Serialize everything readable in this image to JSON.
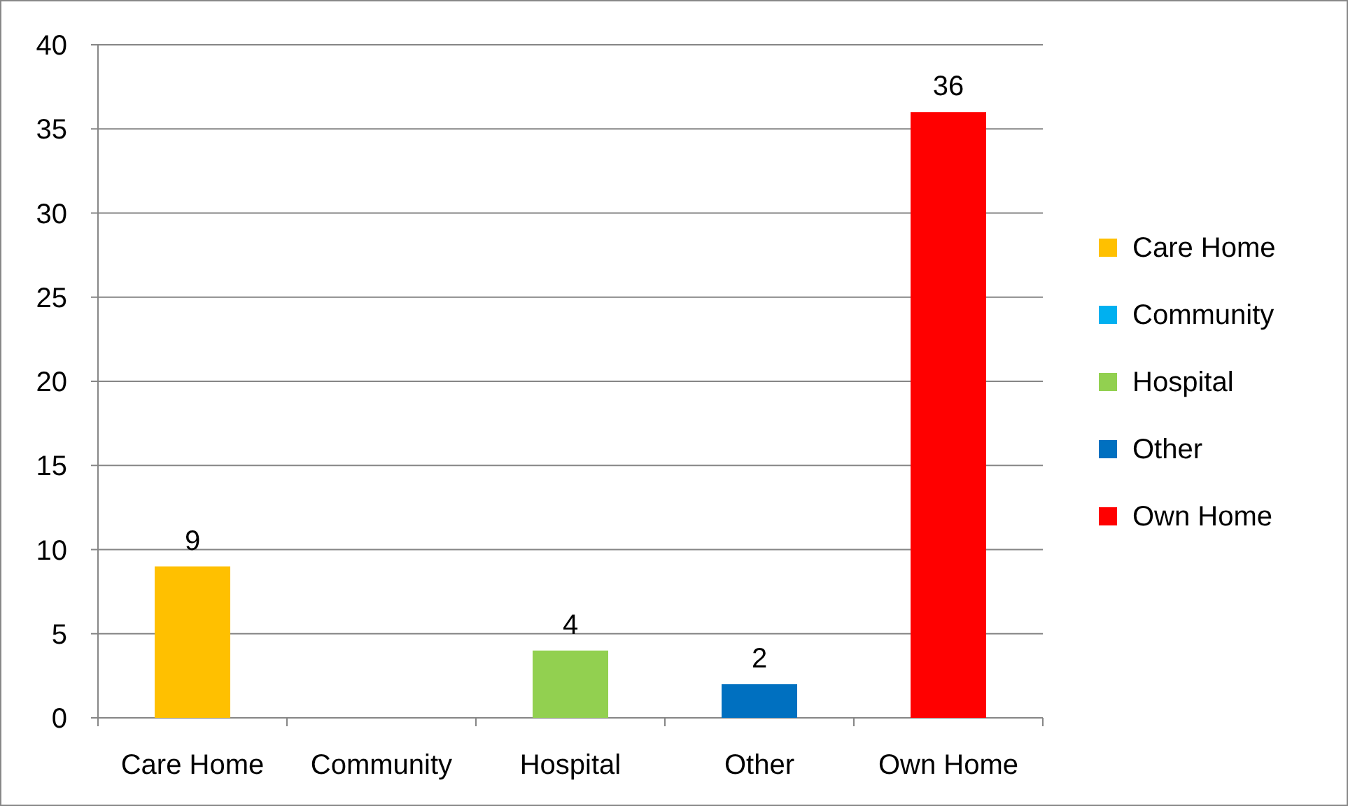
{
  "chart_data": {
    "type": "bar",
    "categories": [
      "Care Home",
      "Community",
      "Hospital",
      "Other",
      "Own Home"
    ],
    "series": [
      {
        "name": "Care Home",
        "color": "#ffc000",
        "values": [
          9,
          null,
          null,
          null,
          null
        ],
        "value_labels": [
          "9",
          null,
          null,
          null,
          null
        ]
      },
      {
        "name": "Community",
        "color": "#00b0f0",
        "values": [
          null,
          0,
          null,
          null,
          null
        ],
        "value_labels": [
          null,
          null,
          null,
          null,
          null
        ]
      },
      {
        "name": "Hospital",
        "color": "#92d050",
        "values": [
          null,
          null,
          4,
          null,
          null
        ],
        "value_labels": [
          null,
          null,
          "4",
          null,
          null
        ]
      },
      {
        "name": "Other",
        "color": "#0070c0",
        "values": [
          null,
          null,
          null,
          2,
          null
        ],
        "value_labels": [
          null,
          null,
          null,
          "2",
          null
        ]
      },
      {
        "name": "Own Home",
        "color": "#ff0000",
        "values": [
          null,
          null,
          null,
          null,
          36
        ],
        "value_labels": [
          null,
          null,
          null,
          null,
          "36"
        ]
      }
    ],
    "ylim": [
      0,
      40
    ],
    "yticks": [
      0,
      5,
      10,
      15,
      20,
      25,
      30,
      35,
      40
    ],
    "grid": "y",
    "legend": "right"
  }
}
